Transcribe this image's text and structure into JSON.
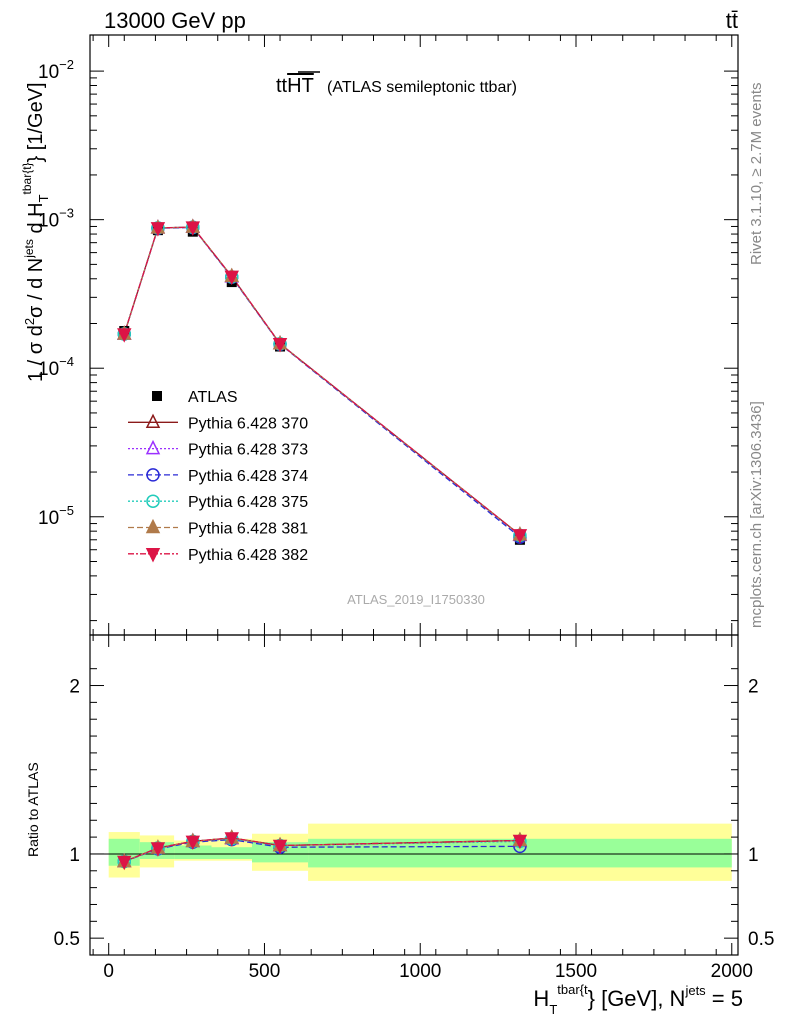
{
  "header": {
    "energy_label": "13000 GeV pp",
    "process_label": "tt̄"
  },
  "plot_title": {
    "main": "tt",
    "overlined": "HT",
    "sub": "(ATLAS semileptonic ttbar)"
  },
  "side_labels": {
    "rivet": "Rivet 3.1.10, ≥ 2.7M events",
    "mcplots": "mcplots.cern.ch [arXiv:1306.3436]"
  },
  "analysis_id": "ATLAS_2019_I1750330",
  "axes": {
    "ylabel_main": {
      "p1": "1 / σ d",
      "sup2": "2",
      "p2": "σ / d N",
      "sup_jets": "jets",
      "p3": " d H",
      "sub_T": "T",
      "sup_tbar": "tbar{t}",
      "p4": "} [1/GeV]"
    },
    "ylabel_ratio": "Ratio to ATLAS",
    "xlabel": {
      "p1": "H",
      "sub_T": "T",
      "sup_tbar": "tbar{t",
      "p2": "} [GeV], N",
      "sup_jets": "jets",
      "p3": " = 5"
    }
  },
  "chart_data": {
    "type": "line",
    "x_range": [
      -60,
      2020
    ],
    "y_scale": "log",
    "y_range": [
      1.6e-06,
      0.0175
    ],
    "y_ticks": [
      {
        "value": 1e-05,
        "base": "10",
        "exp": "−5"
      },
      {
        "value": 0.0001,
        "base": "10",
        "exp": "−4"
      },
      {
        "value": 0.001,
        "base": "10",
        "exp": "−3"
      },
      {
        "value": 0.01,
        "base": "10",
        "exp": "−2"
      }
    ],
    "x_ticks": [
      {
        "value": 0,
        "label": "0"
      },
      {
        "value": 500,
        "label": "500"
      },
      {
        "value": 1000,
        "label": "1000"
      },
      {
        "value": 1500,
        "label": "1500"
      },
      {
        "value": 2000,
        "label": "2000"
      }
    ],
    "bins": [
      [
        0,
        100
      ],
      [
        100,
        210
      ],
      [
        210,
        330
      ],
      [
        330,
        460
      ],
      [
        460,
        640
      ],
      [
        640,
        2000
      ]
    ],
    "x": [
      50,
      158,
      270,
      395,
      550,
      1320
    ],
    "data": {
      "name": "ATLAS",
      "values": [
        0.000178,
        0.00085,
        0.00083,
        0.00038,
        0.00014,
        7e-06
      ],
      "band_inner": [
        [
          0.93,
          1.09
        ],
        [
          0.97,
          1.07
        ],
        [
          0.97,
          1.05
        ],
        [
          0.97,
          1.04
        ],
        [
          0.95,
          1.07
        ],
        [
          0.92,
          1.09
        ]
      ],
      "band_outer": [
        [
          0.86,
          1.13
        ],
        [
          0.92,
          1.11
        ],
        [
          0.96,
          1.08
        ],
        [
          0.96,
          1.09
        ],
        [
          0.9,
          1.12
        ],
        [
          0.84,
          1.18
        ]
      ]
    },
    "series": [
      {
        "name": "Pythia 6.428 370",
        "color": "#8b1a1a",
        "dash": "",
        "marker": "triangle-up-open",
        "values": [
          0.00017,
          0.00088,
          0.00089,
          0.000415,
          0.000146,
          7.55e-06
        ]
      },
      {
        "name": "Pythia 6.428 373",
        "color": "#9b30ff",
        "dash": "2,2",
        "marker": "triangle-up-open",
        "values": [
          0.00017,
          0.00088,
          0.00089,
          0.000412,
          0.000146,
          7.5e-06
        ]
      },
      {
        "name": "Pythia 6.428 374",
        "color": "#2a2ad6",
        "dash": "6,3",
        "marker": "circle-open",
        "values": [
          0.00017,
          0.000875,
          0.000885,
          0.00041,
          0.000145,
          7.3e-06
        ]
      },
      {
        "name": "Pythia 6.428 375",
        "color": "#22ccbb",
        "dash": "2,2",
        "marker": "circle-open",
        "values": [
          0.00017,
          0.00088,
          0.00089,
          0.000412,
          0.000146,
          7.5e-06
        ]
      },
      {
        "name": "Pythia 6.428 381",
        "color": "#b07a4a",
        "dash": "6,3",
        "marker": "triangle-up-filled",
        "values": [
          0.00017,
          0.00088,
          0.00089,
          0.000415,
          0.000146,
          7.55e-06
        ]
      },
      {
        "name": "Pythia 6.428 382",
        "color": "#dc1446",
        "dash": "6,2,2,2",
        "marker": "triangle-down-filled",
        "values": [
          0.00017,
          0.00088,
          0.00089,
          0.000415,
          0.000146,
          7.55e-06
        ]
      }
    ],
    "ratio": {
      "y_range": [
        0.4,
        2.3
      ],
      "y_ticks": [
        {
          "value": 0.5,
          "label": "0.5"
        },
        {
          "value": 1,
          "label": "1"
        },
        {
          "value": 2,
          "label": "2"
        }
      ],
      "series_values": [
        [
          0.955,
          1.035,
          1.075,
          1.095,
          1.05,
          1.08
        ],
        [
          0.955,
          1.035,
          1.075,
          1.09,
          1.05,
          1.075
        ],
        [
          0.955,
          1.03,
          1.07,
          1.085,
          1.04,
          1.045
        ],
        [
          0.955,
          1.035,
          1.075,
          1.09,
          1.05,
          1.075
        ],
        [
          0.955,
          1.035,
          1.075,
          1.095,
          1.05,
          1.08
        ],
        [
          0.955,
          1.035,
          1.075,
          1.095,
          1.05,
          1.08
        ]
      ]
    }
  }
}
